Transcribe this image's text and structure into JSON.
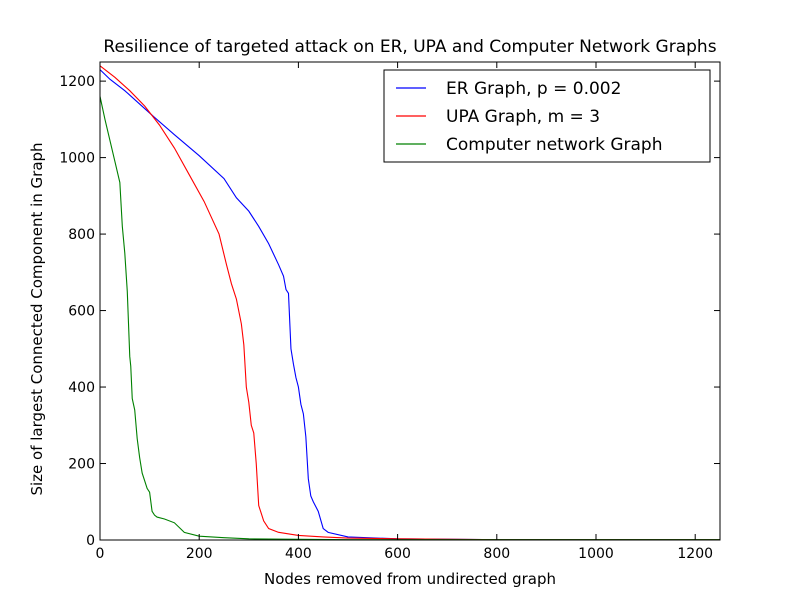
{
  "chart_data": {
    "type": "line",
    "title": "Resilience of targeted attack on ER, UPA and Computer Network Graphs",
    "xlabel": "Nodes removed from undirected graph",
    "ylabel": "Size of largest Connected Component in Graph",
    "xlim": [
      0,
      1250
    ],
    "ylim": [
      0,
      1250
    ],
    "xticks": [
      0,
      200,
      400,
      600,
      800,
      1000,
      1200
    ],
    "yticks": [
      0,
      200,
      400,
      600,
      800,
      1000,
      1200
    ],
    "grid": false,
    "legend": "top-right",
    "series": [
      {
        "name": "ER Graph, p = 0.002",
        "color": "#0000ff",
        "x": [
          0,
          20,
          50,
          80,
          110,
          150,
          200,
          250,
          275,
          300,
          320,
          340,
          360,
          370,
          375,
          380,
          385,
          390,
          395,
          400,
          405,
          410,
          415,
          420,
          425,
          430,
          440,
          450,
          460,
          500,
          600,
          800,
          1250
        ],
        "y": [
          1230,
          1205,
          1175,
          1140,
          1105,
          1060,
          1005,
          945,
          895,
          860,
          820,
          775,
          720,
          690,
          655,
          645,
          500,
          460,
          425,
          400,
          355,
          330,
          270,
          160,
          115,
          100,
          75,
          30,
          20,
          8,
          3,
          1,
          1
        ]
      },
      {
        "name": "UPA Graph, m = 3",
        "color": "#ff0000",
        "x": [
          0,
          30,
          60,
          90,
          120,
          150,
          180,
          210,
          240,
          255,
          265,
          275,
          285,
          290,
          295,
          300,
          305,
          310,
          315,
          320,
          325,
          330,
          340,
          360,
          400,
          450,
          500,
          600,
          800,
          1250
        ],
        "y": [
          1240,
          1210,
          1175,
          1135,
          1085,
          1025,
          955,
          885,
          800,
          720,
          670,
          630,
          565,
          510,
          400,
          360,
          300,
          280,
          200,
          90,
          70,
          50,
          30,
          20,
          12,
          8,
          5,
          3,
          1,
          1
        ]
      },
      {
        "name": "Computer network Graph",
        "color": "#008000",
        "x": [
          0,
          10,
          20,
          30,
          40,
          45,
          50,
          55,
          60,
          62,
          65,
          70,
          75,
          80,
          85,
          90,
          95,
          100,
          105,
          110,
          115,
          130,
          150,
          170,
          200,
          250,
          300,
          500,
          1250
        ],
        "y": [
          1160,
          1100,
          1045,
          990,
          935,
          820,
          750,
          650,
          480,
          455,
          370,
          340,
          265,
          215,
          175,
          155,
          135,
          125,
          75,
          65,
          60,
          55,
          45,
          20,
          10,
          6,
          3,
          1,
          1
        ]
      }
    ]
  }
}
